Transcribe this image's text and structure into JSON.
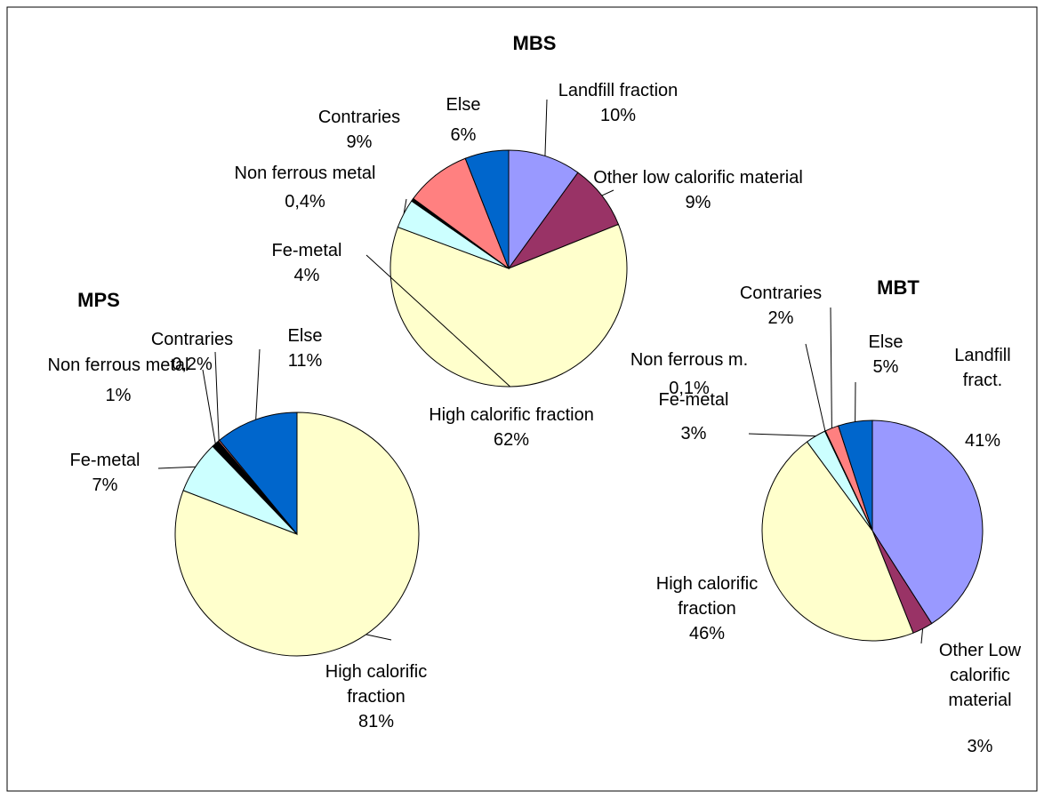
{
  "chart_data": [
    {
      "type": "pie",
      "title": "MBS",
      "categories": [
        "Landfill fraction",
        "Other low calorific material",
        "High calorific fraction",
        "Fe-metal",
        "Non ferrous metal",
        "Contraries",
        "Else"
      ],
      "values": [
        10,
        9,
        62,
        4,
        0.4,
        9,
        6
      ],
      "value_labels": [
        "10%",
        "9%",
        "62%",
        "4%",
        "0,4%",
        "9%",
        "6%"
      ],
      "colors": [
        "#9999ff",
        "#993366",
        "#ffffcc",
        "#ccffff",
        "#000000",
        "#ff8080",
        "#0066cc"
      ]
    },
    {
      "type": "pie",
      "title": "MPS",
      "categories": [
        "High calorific fraction",
        "Fe-metal",
        "Non ferrous metal",
        "Contraries",
        "Else"
      ],
      "values": [
        81,
        7,
        1,
        0.2,
        11
      ],
      "value_labels": [
        "81%",
        "7%",
        "1%",
        "0,2%",
        "11%"
      ],
      "colors": [
        "#ffffcc",
        "#ccffff",
        "#000000",
        "#ff8080",
        "#0066cc"
      ]
    },
    {
      "type": "pie",
      "title": "MBT",
      "categories": [
        "Landfill fract.",
        "Other Low calorific material",
        "High calorific fraction",
        "Fe-metal",
        "Non ferrous m.",
        "Contraries",
        "Else"
      ],
      "values": [
        41,
        3,
        46,
        3,
        0.1,
        2,
        5
      ],
      "value_labels": [
        "41%",
        "3%",
        "46%",
        "3%",
        "0,1%",
        "2%",
        "5%"
      ],
      "colors": [
        "#9999ff",
        "#993366",
        "#ffffcc",
        "#ccffff",
        "#000000",
        "#ff8080",
        "#0066cc"
      ]
    }
  ]
}
